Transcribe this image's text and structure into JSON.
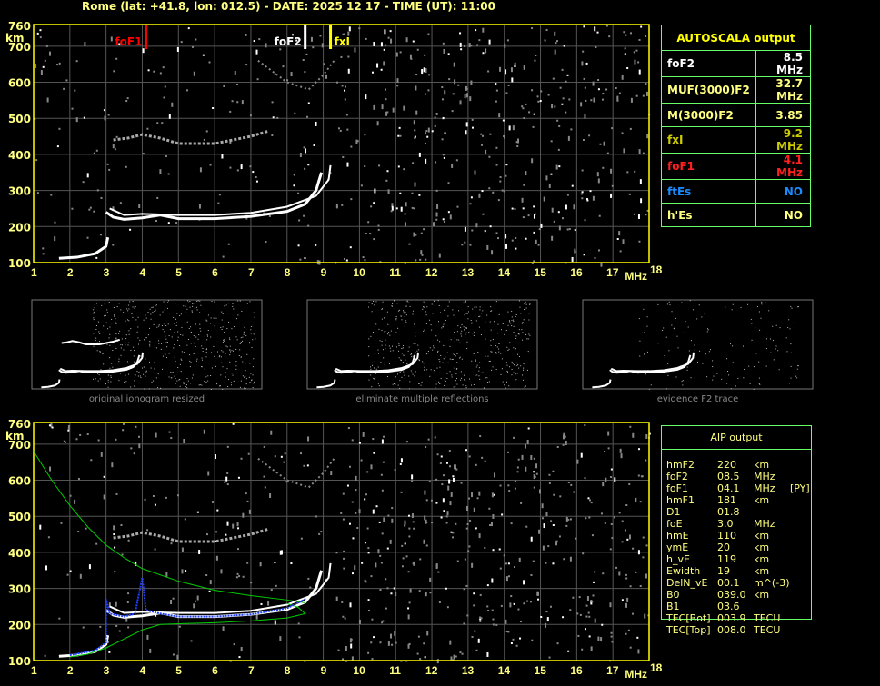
{
  "header": {
    "title": "Rome (lat: +41.8, lon: 012.5) - DATE: 2025 12 17 - TIME (UT): 11:00"
  },
  "colors": {
    "frame": "#ffff00",
    "grid": "#555555",
    "axis_text": "#ffff80",
    "foF1": "#ff0000",
    "foF2": "#ffffff",
    "fxI": "#ffff00",
    "table_border": "#66ff66",
    "ftEs": "#1a8cff",
    "model_profile": "#00cc00",
    "aip_trace": "#2040ff"
  },
  "chart_data": [
    {
      "type": "scatter",
      "panel": "autoscala",
      "xlabel": "MHz",
      "ylabel": "km",
      "xlim": [
        1,
        18
      ],
      "ylim": [
        100,
        760
      ],
      "xticks": [
        "1",
        "2",
        "3",
        "4",
        "5",
        "6",
        "7",
        "8",
        "9",
        "10",
        "11",
        "12",
        "13",
        "14",
        "15",
        "16",
        "17",
        "18"
      ],
      "yticks": [
        "100",
        "200",
        "300",
        "400",
        "500",
        "600",
        "700",
        "760"
      ],
      "grid": true,
      "markers": [
        {
          "label": "foF1",
          "x": 4.1
        },
        {
          "label": "foF2",
          "x": 8.5
        },
        {
          "label": "fxI",
          "x": 9.2
        }
      ],
      "traces": {
        "e_region": [
          [
            1.7,
            112
          ],
          [
            2.2,
            115
          ],
          [
            2.7,
            125
          ],
          [
            3.0,
            145
          ],
          [
            3.05,
            170
          ]
        ],
        "f_ordinary": [
          [
            3.0,
            240
          ],
          [
            3.2,
            226
          ],
          [
            3.5,
            220
          ],
          [
            4.0,
            224
          ],
          [
            4.5,
            232
          ],
          [
            5.0,
            222
          ],
          [
            6.0,
            222
          ],
          [
            7.0,
            228
          ],
          [
            8.0,
            242
          ],
          [
            8.5,
            262
          ],
          [
            8.8,
            300
          ],
          [
            8.95,
            350
          ]
        ],
        "f_extraordinary": [
          [
            3.1,
            250
          ],
          [
            3.5,
            232
          ],
          [
            4.0,
            235
          ],
          [
            5.0,
            232
          ],
          [
            6.0,
            232
          ],
          [
            7.0,
            238
          ],
          [
            8.0,
            255
          ],
          [
            8.8,
            285
          ],
          [
            9.15,
            330
          ],
          [
            9.2,
            370
          ]
        ],
        "multiple_reflection": [
          [
            3.2,
            440
          ],
          [
            3.6,
            445
          ],
          [
            4.0,
            455
          ],
          [
            4.5,
            445
          ],
          [
            5.0,
            430
          ],
          [
            6.0,
            430
          ],
          [
            7.0,
            450
          ],
          [
            7.5,
            465
          ]
        ],
        "rising_echo": [
          [
            7.2,
            660
          ],
          [
            8.0,
            600
          ],
          [
            8.6,
            580
          ],
          [
            9.0,
            620
          ],
          [
            9.3,
            660
          ]
        ]
      }
    },
    {
      "type": "scatter",
      "panel": "aip",
      "xlabel": "MHz",
      "ylabel": "km",
      "xlim": [
        1,
        18
      ],
      "ylim": [
        100,
        760
      ],
      "xticks": [
        "1",
        "2",
        "3",
        "4",
        "5",
        "6",
        "7",
        "8",
        "9",
        "10",
        "11",
        "12",
        "13",
        "14",
        "15",
        "16",
        "17",
        "18"
      ],
      "yticks": [
        "100",
        "200",
        "300",
        "400",
        "500",
        "600",
        "700",
        "760"
      ],
      "grid": true,
      "profile_upper": [
        [
          1,
          680
        ],
        [
          1.5,
          600
        ],
        [
          2,
          530
        ],
        [
          2.5,
          470
        ],
        [
          3,
          420
        ],
        [
          3.5,
          385
        ],
        [
          4,
          355
        ],
        [
          5,
          320
        ],
        [
          6,
          295
        ],
        [
          7,
          280
        ],
        [
          8,
          268
        ],
        [
          8.5,
          260
        ]
      ],
      "profile_lower": [
        [
          2,
          110
        ],
        [
          2.5,
          118
        ],
        [
          3,
          135
        ],
        [
          3.5,
          160
        ],
        [
          4,
          185
        ],
        [
          4.5,
          200
        ],
        [
          5,
          202
        ],
        [
          6,
          205
        ],
        [
          7,
          210
        ],
        [
          8,
          218
        ],
        [
          8.5,
          230
        ],
        [
          8.3,
          248
        ],
        [
          8.0,
          258
        ]
      ],
      "aip_trace": [
        [
          2.0,
          115
        ],
        [
          2.7,
          128
        ],
        [
          3.0,
          150
        ],
        [
          3.0,
          270
        ],
        [
          3.1,
          230
        ],
        [
          3.5,
          222
        ],
        [
          3.8,
          230
        ],
        [
          4.0,
          330
        ],
        [
          4.1,
          240
        ],
        [
          4.5,
          230
        ],
        [
          5,
          222
        ],
        [
          6,
          222
        ],
        [
          7,
          228
        ],
        [
          8,
          245
        ],
        [
          8.5,
          270
        ]
      ]
    }
  ],
  "thumbnails": [
    {
      "caption": "original ionogram resized"
    },
    {
      "caption": "eliminate multiple reflections"
    },
    {
      "caption": "evidence F2 trace"
    }
  ],
  "autoscala": {
    "title": "AUTOSCALA output",
    "rows": [
      {
        "label": "foF2",
        "value": "8.5 MHz",
        "color": "#ffffff"
      },
      {
        "label": "MUF(3000)F2",
        "value": "32.7 MHz",
        "color": "#ffff80"
      },
      {
        "label": "M(3000)F2",
        "value": "3.85",
        "color": "#ffff80"
      },
      {
        "label": "fxI",
        "value": "9.2 MHz",
        "color": "#cccc00"
      },
      {
        "label": "foF1",
        "value": "4.1 MHz",
        "color": "#ff2020"
      },
      {
        "label": "ftEs",
        "value": "NO",
        "color": "#1a8cff"
      },
      {
        "label": "h'Es",
        "value": "NO",
        "color": "#ffff80"
      }
    ]
  },
  "aip": {
    "title": "AIP output",
    "rows": [
      {
        "name": "hmF2",
        "value": "220",
        "unit": "km",
        "note": ""
      },
      {
        "name": "foF2",
        "value": "08.5",
        "unit": "MHz",
        "note": ""
      },
      {
        "name": "foF1",
        "value": "04.1",
        "unit": "MHz",
        "note": "[PY]"
      },
      {
        "name": "hmF1",
        "value": "181",
        "unit": "km",
        "note": ""
      },
      {
        "name": "D1",
        "value": "01.8",
        "unit": "",
        "note": ""
      },
      {
        "name": "foE",
        "value": "3.0",
        "unit": "MHz",
        "note": ""
      },
      {
        "name": "hmE",
        "value": "110",
        "unit": "km",
        "note": ""
      },
      {
        "name": "ymE",
        "value": "20",
        "unit": "km",
        "note": ""
      },
      {
        "name": "h_vE",
        "value": "119",
        "unit": "km",
        "note": ""
      },
      {
        "name": "Ewidth",
        "value": "19",
        "unit": "km",
        "note": ""
      },
      {
        "name": "DelN_vE",
        "value": "00.1",
        "unit": "m^(-3)",
        "note": ""
      },
      {
        "name": "B0",
        "value": "039.0",
        "unit": "km",
        "note": ""
      },
      {
        "name": "B1",
        "value": "03.6",
        "unit": "",
        "note": ""
      },
      {
        "name": "TEC[Bot]",
        "value": "003.9",
        "unit": "TECU",
        "note": ""
      },
      {
        "name": "TEC[Top]",
        "value": "008.0",
        "unit": "TECU",
        "note": ""
      }
    ]
  }
}
